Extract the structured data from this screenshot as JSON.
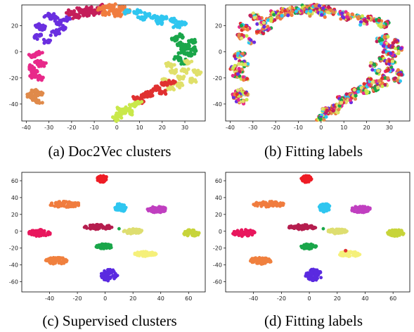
{
  "captions": {
    "a": "(a) Doc2Vec clusters",
    "b": "(b) Fitting labels",
    "c": "(c) Supervised clusters",
    "d": "(d) Fitting labels"
  },
  "chart_data": [
    {
      "type": "scatter",
      "title": "",
      "caption": "(a) Doc2Vec clusters",
      "xlim": [
        -42,
        39
      ],
      "ylim": [
        -53,
        36
      ],
      "xticks": [
        -40,
        -30,
        -20,
        -10,
        0,
        10,
        20,
        30
      ],
      "yticks": [
        -40,
        -20,
        0,
        20
      ],
      "grid": false,
      "clusters": [
        {
          "color": "#6a2fe0",
          "points": [
            [
              -33,
              18
            ],
            [
              -30,
              28
            ],
            [
              -27,
              15
            ],
            [
              -26,
              22
            ],
            [
              -35,
              12
            ],
            [
              -31,
              8
            ],
            [
              -28,
              26
            ],
            [
              -22,
              25
            ],
            [
              -24,
              18
            ],
            [
              -34,
              20
            ]
          ]
        },
        {
          "color": "#c41e5a",
          "points": [
            [
              -20,
              30
            ],
            [
              -16,
              32
            ],
            [
              -12,
              33
            ],
            [
              -9,
              31
            ],
            [
              -18,
              27
            ],
            [
              -14,
              29
            ],
            [
              -10,
              30
            ],
            [
              -7,
              34
            ]
          ]
        },
        {
          "color": "#f07c3e",
          "points": [
            [
              -7,
              33
            ],
            [
              -4,
              34
            ],
            [
              -1,
              32
            ],
            [
              2,
              33
            ],
            [
              4,
              31
            ],
            [
              -5,
              30
            ],
            [
              0,
              29
            ],
            [
              -2,
              35
            ]
          ]
        },
        {
          "color": "#2fc6f0",
          "points": [
            [
              5,
              31
            ],
            [
              9,
              30
            ],
            [
              13,
              28
            ],
            [
              17,
              27
            ],
            [
              21,
              26
            ],
            [
              25,
              24
            ],
            [
              29,
              22
            ],
            [
              11,
              26
            ],
            [
              19,
              23
            ],
            [
              27,
              20
            ]
          ]
        },
        {
          "color": "#1aa64a",
          "points": [
            [
              26,
              10
            ],
            [
              28,
              6
            ],
            [
              31,
              4
            ],
            [
              33,
              8
            ],
            [
              29,
              0
            ],
            [
              32,
              -2
            ],
            [
              27,
              -5
            ],
            [
              30,
              -8
            ],
            [
              34,
              2
            ],
            [
              28,
              12
            ]
          ]
        },
        {
          "color": "#e8298a",
          "points": [
            [
              -37,
              -3
            ],
            [
              -35,
              -8
            ],
            [
              -36,
              -15
            ],
            [
              -34,
              -20
            ],
            [
              -38,
              -12
            ],
            [
              -35,
              -1
            ],
            [
              -33,
              -10
            ],
            [
              -37,
              -18
            ]
          ]
        },
        {
          "color": "#e0e06a",
          "points": [
            [
              23,
              -10
            ],
            [
              25,
              -15
            ],
            [
              28,
              -20
            ],
            [
              30,
              -14
            ],
            [
              27,
              -25
            ],
            [
              24,
              -28
            ],
            [
              22,
              -22
            ],
            [
              31,
              -8
            ],
            [
              35,
              -16
            ],
            [
              33,
              -22
            ]
          ]
        },
        {
          "color": "#e03030",
          "points": [
            [
              9,
              -36
            ],
            [
              12,
              -33
            ],
            [
              15,
              -30
            ],
            [
              18,
              -28
            ],
            [
              21,
              -25
            ],
            [
              24,
              -23
            ],
            [
              14,
              -34
            ],
            [
              20,
              -31
            ],
            [
              11,
              -38
            ]
          ]
        },
        {
          "color": "#c9e84a",
          "points": [
            [
              1,
              -49
            ],
            [
              3,
              -46
            ],
            [
              5,
              -44
            ],
            [
              7,
              -41
            ],
            [
              9,
              -39
            ],
            [
              2,
              -44
            ],
            [
              6,
              -46
            ],
            [
              0,
              -51
            ]
          ]
        },
        {
          "color": "#e08a4a",
          "points": [
            [
              -36,
              -30
            ],
            [
              -37,
              -35
            ],
            [
              -35,
              -38
            ],
            [
              -34,
              -32
            ],
            [
              -38,
              -33
            ]
          ]
        }
      ]
    },
    {
      "type": "scatter",
      "title": "",
      "caption": "(b) Fitting labels",
      "xlim": [
        -42,
        39
      ],
      "ylim": [
        -53,
        36
      ],
      "xticks": [
        -40,
        -30,
        -20,
        -10,
        0,
        10,
        20,
        30
      ],
      "yticks": [
        -40,
        -20,
        0,
        20
      ],
      "grid": false,
      "colors": [
        "#6a2fe0",
        "#c41e5a",
        "#f07c3e",
        "#2fc6f0",
        "#1aa64a",
        "#e8298a",
        "#e0e06a",
        "#e03030",
        "#c9e84a",
        "#e08a4a"
      ]
    },
    {
      "type": "scatter",
      "title": "",
      "caption": "(c) Supervised clusters",
      "xlim": [
        -60,
        72
      ],
      "ylim": [
        -72,
        70
      ],
      "xticks": [
        -40,
        -20,
        0,
        20,
        40,
        60
      ],
      "yticks": [
        -60,
        -40,
        -20,
        0,
        20,
        40,
        60
      ],
      "grid": false,
      "clusters": [
        {
          "color": "#ee1c25",
          "cx": -2,
          "cy": 62,
          "rx": 4,
          "ry": 4
        },
        {
          "color": "#f07c3e",
          "cx": -29,
          "cy": 32,
          "rx": 11,
          "ry": 3.5
        },
        {
          "color": "#2fc6f0",
          "cx": 11,
          "cy": 28,
          "rx": 4,
          "ry": 5
        },
        {
          "color": "#c03fc0",
          "cx": 37,
          "cy": 26,
          "rx": 7,
          "ry": 4
        },
        {
          "color": "#e8175d",
          "cx": -47,
          "cy": -2,
          "rx": 8,
          "ry": 4
        },
        {
          "color": "#b51d4e",
          "cx": -5,
          "cy": 5,
          "rx": 10,
          "ry": 3
        },
        {
          "color": "#dede70",
          "cx": 20,
          "cy": 0,
          "rx": 7,
          "ry": 3
        },
        {
          "color": "#c7d43a",
          "cx": 62,
          "cy": -2,
          "rx": 6,
          "ry": 4
        },
        {
          "color": "#1aa64a",
          "cx": -1,
          "cy": -18,
          "rx": 6,
          "ry": 3
        },
        {
          "color": "#f5f07a",
          "cx": 29,
          "cy": -27,
          "rx": 8,
          "ry": 3
        },
        {
          "color": "#f0803e",
          "cx": -35,
          "cy": -35,
          "rx": 8,
          "ry": 4
        },
        {
          "color": "#5a2ae0",
          "cx": 3,
          "cy": -52,
          "rx": 6,
          "ry": 7
        }
      ]
    },
    {
      "type": "scatter",
      "title": "",
      "caption": "(d) Fitting labels",
      "xlim": [
        -60,
        72
      ],
      "ylim": [
        -72,
        70
      ],
      "xticks": [
        -40,
        -20,
        0,
        20,
        40,
        60
      ],
      "yticks": [
        -60,
        -40,
        -20,
        0,
        20,
        40,
        60
      ],
      "grid": false,
      "outlier": {
        "color": "#e03030",
        "x": 26,
        "y": -23
      }
    }
  ]
}
